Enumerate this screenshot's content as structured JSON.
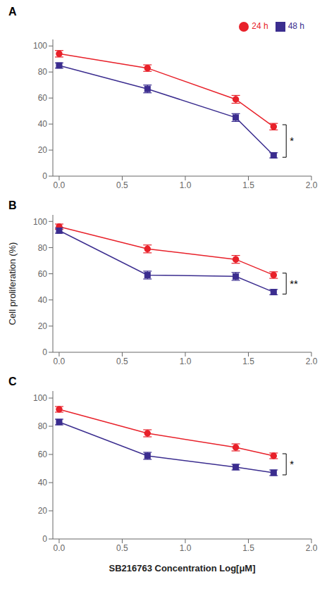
{
  "chart_data": [
    {
      "type": "line",
      "title": "A",
      "legend": "upper right",
      "grid": false,
      "x": [
        0.0,
        0.7,
        1.4,
        1.7
      ],
      "series": [
        {
          "name": "24 h",
          "color": "#e8212a",
          "marker": "circle",
          "values": [
            94,
            83,
            59,
            38
          ],
          "errors": [
            2.5,
            2.5,
            3,
            2.5
          ]
        },
        {
          "name": "48 h",
          "color": "#3b2d8f",
          "marker": "square",
          "values": [
            85,
            67,
            45,
            16
          ],
          "errors": [
            2,
            3,
            3,
            2
          ]
        }
      ],
      "annotations": [
        "*"
      ],
      "xlim": [
        -0.05,
        2.0
      ],
      "xticks": [
        {
          "value": 0.0,
          "label": "0.0"
        },
        {
          "value": 0.5,
          "label": "0.5"
        },
        {
          "value": 1.0,
          "label": "1.0"
        },
        {
          "value": 1.5,
          "label": "1.5"
        },
        {
          "value": 2.0,
          "label": "2.0"
        }
      ],
      "ylim": [
        0,
        105
      ],
      "yticks": [
        0,
        20,
        40,
        60,
        80,
        100
      ]
    },
    {
      "type": "line",
      "title": "B",
      "grid": false,
      "ylabel": "Cell proliferation (%)",
      "x": [
        0.0,
        0.7,
        1.4,
        1.7
      ],
      "series": [
        {
          "color": "#e8212a",
          "marker": "circle",
          "values": [
            96,
            79,
            71,
            59
          ],
          "errors": [
            2,
            3,
            3,
            2.5
          ]
        },
        {
          "color": "#3b2d8f",
          "marker": "square",
          "values": [
            93,
            59,
            58,
            46
          ],
          "errors": [
            2,
            3,
            3,
            2
          ]
        }
      ],
      "annotations": [
        "**"
      ],
      "xlim": [
        -0.05,
        2.0
      ],
      "xticks": [
        {
          "value": 0.0,
          "label": "0.0"
        },
        {
          "value": 0.5,
          "label": "0.5"
        },
        {
          "value": 1.0,
          "label": "1.0"
        },
        {
          "value": 1.5,
          "label": "1.5"
        },
        {
          "value": 2.0,
          "label": "2.0"
        }
      ],
      "ylim": [
        0,
        105
      ],
      "yticks": [
        0,
        20,
        40,
        60,
        80,
        100
      ]
    },
    {
      "type": "line",
      "title": "C",
      "grid": false,
      "xlabel": "SB216763 Concentration Log[μM]",
      "x": [
        0.0,
        0.7,
        1.4,
        1.7
      ],
      "series": [
        {
          "color": "#e8212a",
          "marker": "circle",
          "values": [
            92,
            75,
            65,
            59
          ],
          "errors": [
            2,
            2.5,
            2.5,
            2
          ]
        },
        {
          "color": "#3b2d8f",
          "marker": "square",
          "values": [
            83,
            59,
            51,
            47
          ],
          "errors": [
            2,
            2.5,
            2,
            2
          ]
        }
      ],
      "annotations": [
        "*"
      ],
      "xlim": [
        -0.05,
        2.0
      ],
      "xticks": [
        {
          "value": 0.0,
          "label": "0.0"
        },
        {
          "value": 0.5,
          "label": "0.5"
        },
        {
          "value": 1.0,
          "label": "1.0"
        },
        {
          "value": 1.5,
          "label": "1.5"
        },
        {
          "value": 2.0,
          "label": "2.0"
        }
      ],
      "ylim": [
        0,
        105
      ],
      "yticks": [
        0,
        20,
        40,
        60,
        80,
        100
      ]
    }
  ]
}
